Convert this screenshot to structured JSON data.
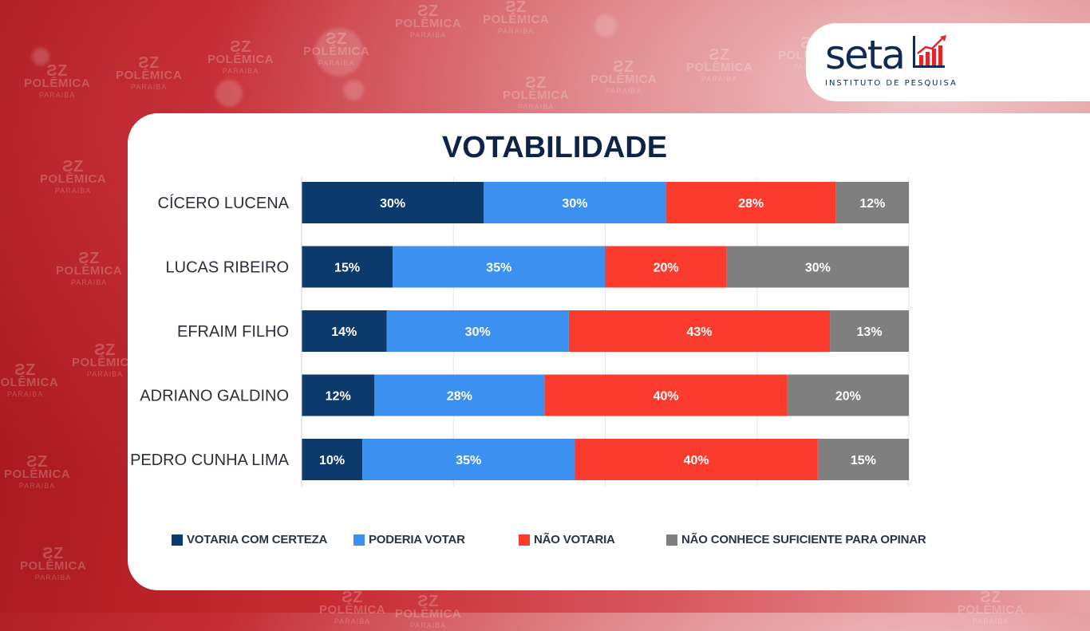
{
  "watermark": {
    "brand": "POLÊMICA",
    "sub": "PARAIBA",
    "mark": "ƧZ"
  },
  "logo": {
    "word": "seta",
    "subtitle": "INSTITUTO DE PESQUISA",
    "accent": "#e8232a",
    "color": "#0d2b55"
  },
  "chart_data": {
    "type": "bar",
    "orientation": "horizontal",
    "stacked": true,
    "title": "VOTABILIDADE",
    "categories": [
      "CÍCERO LUCENA",
      "LUCAS RIBEIRO",
      "EFRAIM FILHO",
      "ADRIANO GALDINO",
      "PEDRO CUNHA LIMA"
    ],
    "series": [
      {
        "name": "VOTARIA COM CERTEZA",
        "color": "#0c3a6c",
        "values": [
          30,
          15,
          14,
          12,
          10
        ]
      },
      {
        "name": "PODERIA VOTAR",
        "color": "#3b90f0",
        "values": [
          30,
          35,
          30,
          28,
          35
        ]
      },
      {
        "name": "NÃO VOTARIA",
        "color": "#fb3b2d",
        "values": [
          28,
          20,
          43,
          40,
          40
        ]
      },
      {
        "name": "NÃO CONHECE SUFICIENTE PARA OPINAR",
        "color": "#7f7f7f",
        "values": [
          12,
          30,
          13,
          20,
          15
        ]
      }
    ],
    "value_suffix": "%",
    "xlim": [
      0,
      100
    ],
    "grid": true,
    "legend_position": "bottom"
  }
}
